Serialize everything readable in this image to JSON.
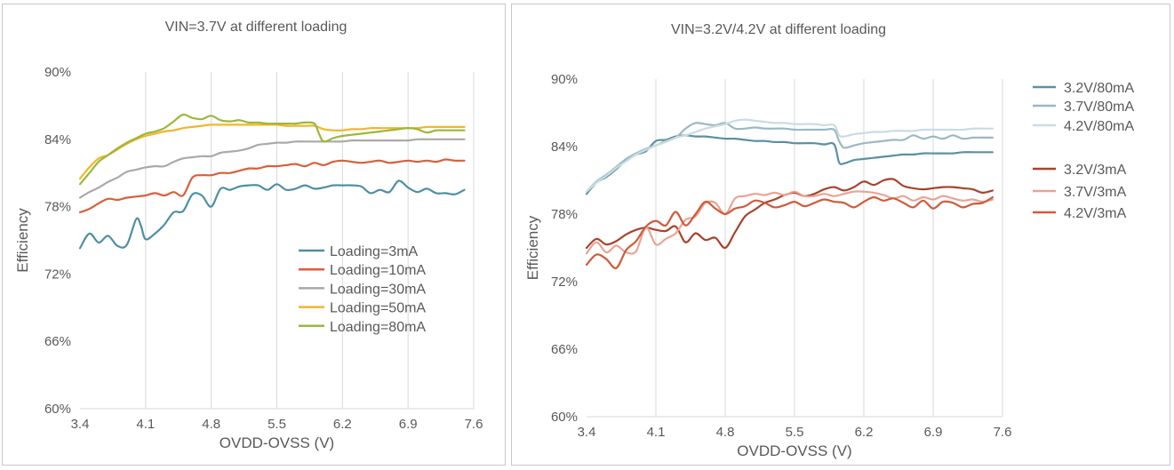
{
  "chart_data": [
    {
      "type": "line",
      "title": "VIN=3.7V  at different loading",
      "xlabel": "OVDD-OVSS (V)",
      "ylabel": "Efficiency",
      "xlim": [
        3.4,
        7.6
      ],
      "ylim": [
        60,
        90
      ],
      "x_ticks": [
        "3.4",
        "4.1",
        "4.8",
        "5.5",
        "6.2",
        "6.9",
        "7.6"
      ],
      "y_ticks": [
        "60%",
        "66%",
        "72%",
        "78%",
        "84%",
        "90%"
      ],
      "grid": "vertical",
      "legend_position": "lower-right inside",
      "series": [
        {
          "name": "Loading=3mA",
          "color": "#4e8fa3",
          "x": [
            3.4,
            3.5,
            3.6,
            3.7,
            3.8,
            3.9,
            4.0,
            4.05,
            4.1,
            4.2,
            4.3,
            4.4,
            4.5,
            4.6,
            4.7,
            4.8,
            4.9,
            5.0,
            5.1,
            5.2,
            5.3,
            5.4,
            5.5,
            5.6,
            5.7,
            5.8,
            5.9,
            6.0,
            6.1,
            6.2,
            6.3,
            6.4,
            6.5,
            6.6,
            6.7,
            6.8,
            6.9,
            7.0,
            7.1,
            7.2,
            7.3,
            7.4,
            7.5
          ],
          "y": [
            74.3,
            75.6,
            74.8,
            75.4,
            74.5,
            74.6,
            76.9,
            76.3,
            75.1,
            75.6,
            76.4,
            77.5,
            77.6,
            79.1,
            79.0,
            78.0,
            79.6,
            79.5,
            79.8,
            79.9,
            79.9,
            79.5,
            80.0,
            79.5,
            79.6,
            79.9,
            79.6,
            79.7,
            79.9,
            79.9,
            79.9,
            79.8,
            79.2,
            79.5,
            79.3,
            80.3,
            79.7,
            79.3,
            79.6,
            79.2,
            79.2,
            79.1,
            79.5
          ]
        },
        {
          "name": "Loading=10mA",
          "color": "#d95f3b",
          "x": [
            3.4,
            3.5,
            3.6,
            3.7,
            3.8,
            3.9,
            4.0,
            4.1,
            4.2,
            4.3,
            4.4,
            4.5,
            4.6,
            4.7,
            4.8,
            4.9,
            5.0,
            5.1,
            5.2,
            5.3,
            5.4,
            5.5,
            5.6,
            5.7,
            5.8,
            5.9,
            6.0,
            6.1,
            6.2,
            6.3,
            6.4,
            6.5,
            6.6,
            6.7,
            6.8,
            6.9,
            7.0,
            7.1,
            7.2,
            7.3,
            7.4,
            7.5
          ],
          "y": [
            77.5,
            77.8,
            78.3,
            78.7,
            78.6,
            78.8,
            78.9,
            79.0,
            79.2,
            79.0,
            79.3,
            79.0,
            80.6,
            80.8,
            80.8,
            81.0,
            81.0,
            81.2,
            81.4,
            81.4,
            81.6,
            81.6,
            81.7,
            81.8,
            81.6,
            81.9,
            81.7,
            82.0,
            82.1,
            82.0,
            81.9,
            82.0,
            82.1,
            81.9,
            82.0,
            82.1,
            82.0,
            82.1,
            82.0,
            82.2,
            82.1,
            82.1
          ]
        },
        {
          "name": "Loading=30mA",
          "color": "#a9a9a9",
          "x": [
            3.4,
            3.5,
            3.6,
            3.7,
            3.8,
            3.9,
            4.0,
            4.1,
            4.2,
            4.3,
            4.4,
            4.5,
            4.6,
            4.7,
            4.8,
            4.9,
            5.0,
            5.1,
            5.2,
            5.3,
            5.4,
            5.5,
            5.6,
            5.7,
            5.8,
            5.9,
            6.0,
            6.1,
            6.2,
            6.3,
            6.4,
            6.5,
            6.6,
            6.7,
            6.8,
            6.9,
            7.0,
            7.1,
            7.2,
            7.3,
            7.4,
            7.5
          ],
          "y": [
            78.8,
            79.3,
            79.7,
            80.2,
            80.6,
            81.1,
            81.3,
            81.5,
            81.6,
            81.6,
            82.0,
            82.3,
            82.4,
            82.5,
            82.5,
            82.8,
            82.9,
            83.0,
            83.2,
            83.5,
            83.6,
            83.7,
            83.7,
            83.8,
            83.8,
            83.8,
            83.8,
            83.8,
            83.8,
            83.9,
            83.9,
            83.9,
            83.9,
            83.9,
            83.9,
            83.9,
            84.0,
            84.0,
            84.0,
            84.0,
            84.0,
            84.0
          ]
        },
        {
          "name": "Loading=50mA",
          "color": "#f2b52c",
          "x": [
            3.4,
            3.5,
            3.6,
            3.7,
            3.8,
            3.9,
            4.0,
            4.1,
            4.2,
            4.3,
            4.4,
            4.5,
            4.6,
            4.7,
            4.8,
            4.9,
            5.0,
            5.1,
            5.2,
            5.3,
            5.4,
            5.5,
            5.6,
            5.7,
            5.8,
            5.9,
            6.0,
            6.1,
            6.2,
            6.3,
            6.4,
            6.5,
            6.6,
            6.7,
            6.8,
            6.9,
            7.0,
            7.1,
            7.2,
            7.3,
            7.4,
            7.5
          ],
          "y": [
            80.5,
            81.5,
            82.3,
            82.6,
            83.1,
            83.6,
            84.0,
            84.3,
            84.5,
            84.7,
            84.8,
            85.0,
            85.1,
            85.2,
            85.3,
            85.3,
            85.3,
            85.3,
            85.3,
            85.3,
            85.3,
            85.3,
            85.2,
            85.2,
            85.2,
            85.2,
            84.9,
            84.8,
            84.8,
            84.9,
            84.9,
            85.0,
            85.0,
            85.0,
            85.0,
            85.0,
            85.0,
            85.1,
            85.1,
            85.1,
            85.1,
            85.1
          ]
        },
        {
          "name": "Loading=80mA",
          "color": "#9cb73a",
          "x": [
            3.4,
            3.5,
            3.6,
            3.7,
            3.8,
            3.9,
            4.0,
            4.1,
            4.2,
            4.3,
            4.4,
            4.5,
            4.6,
            4.7,
            4.8,
            4.9,
            5.0,
            5.1,
            5.2,
            5.3,
            5.4,
            5.5,
            5.6,
            5.7,
            5.8,
            5.9,
            5.95,
            6.0,
            6.1,
            6.2,
            6.3,
            6.4,
            6.5,
            6.6,
            6.7,
            6.8,
            6.9,
            7.0,
            7.1,
            7.2,
            7.3,
            7.4,
            7.5
          ],
          "y": [
            80.0,
            81.0,
            82.0,
            82.6,
            83.2,
            83.7,
            84.1,
            84.5,
            84.7,
            85.0,
            85.6,
            86.2,
            85.9,
            85.8,
            86.1,
            85.7,
            85.6,
            85.7,
            85.5,
            85.5,
            85.4,
            85.4,
            85.4,
            85.4,
            85.5,
            85.4,
            84.5,
            83.8,
            84.1,
            84.3,
            84.4,
            84.5,
            84.6,
            84.7,
            84.8,
            84.9,
            85.0,
            84.9,
            84.6,
            84.8,
            84.8,
            84.8,
            84.8
          ]
        }
      ]
    },
    {
      "type": "line",
      "title": "VIN=3.2V/4.2V  at different loading",
      "xlabel": "OVDD-OVSS (V)",
      "ylabel": "Efficiency",
      "xlim": [
        3.4,
        7.6
      ],
      "ylim": [
        60,
        90
      ],
      "x_ticks": [
        "3.4",
        "4.1",
        "4.8",
        "5.5",
        "6.2",
        "6.9",
        "7.6"
      ],
      "y_ticks": [
        "60%",
        "66%",
        "72%",
        "78%",
        "84%",
        "90%"
      ],
      "grid": "vertical",
      "legend_position": "right outside",
      "series": [
        {
          "name": "3.2V/80mA",
          "color": "#5b8fa3",
          "x": [
            3.4,
            3.5,
            3.6,
            3.7,
            3.8,
            3.9,
            4.0,
            4.1,
            4.2,
            4.3,
            4.4,
            4.5,
            4.6,
            4.7,
            4.8,
            4.9,
            5.0,
            5.1,
            5.2,
            5.3,
            5.4,
            5.5,
            5.6,
            5.7,
            5.8,
            5.9,
            5.95,
            6.0,
            6.1,
            6.2,
            6.3,
            6.4,
            6.5,
            6.6,
            6.7,
            6.8,
            6.9,
            7.0,
            7.1,
            7.2,
            7.3,
            7.4,
            7.5
          ],
          "y": [
            79.8,
            80.8,
            81.3,
            82.0,
            82.8,
            83.3,
            83.6,
            84.5,
            84.6,
            84.9,
            85.0,
            84.9,
            84.9,
            84.8,
            84.7,
            84.7,
            84.6,
            84.5,
            84.5,
            84.4,
            84.4,
            84.3,
            84.3,
            84.3,
            84.2,
            84.2,
            82.6,
            82.5,
            82.8,
            82.9,
            83.0,
            83.1,
            83.2,
            83.3,
            83.3,
            83.4,
            83.4,
            83.4,
            83.4,
            83.5,
            83.5,
            83.5,
            83.5
          ]
        },
        {
          "name": "3.7V/80mA",
          "color": "#9ab8c4",
          "x": [
            3.4,
            3.5,
            3.6,
            3.7,
            3.8,
            3.9,
            4.0,
            4.1,
            4.2,
            4.3,
            4.4,
            4.5,
            4.6,
            4.7,
            4.8,
            4.9,
            5.0,
            5.1,
            5.2,
            5.3,
            5.4,
            5.5,
            5.6,
            5.7,
            5.8,
            5.9,
            5.95,
            6.0,
            6.1,
            6.2,
            6.3,
            6.4,
            6.5,
            6.6,
            6.7,
            6.8,
            6.9,
            7.0,
            7.1,
            7.2,
            7.3,
            7.4,
            7.5
          ],
          "y": [
            80.0,
            80.9,
            81.5,
            82.2,
            82.9,
            83.4,
            83.8,
            84.1,
            84.5,
            84.8,
            85.6,
            86.1,
            86.0,
            85.9,
            86.1,
            85.6,
            85.6,
            85.7,
            85.6,
            85.6,
            85.6,
            85.5,
            85.5,
            85.5,
            85.5,
            85.5,
            84.5,
            83.9,
            84.1,
            84.3,
            84.4,
            84.5,
            84.6,
            84.6,
            85.0,
            84.7,
            84.9,
            84.7,
            85.0,
            84.7,
            84.8,
            84.8,
            84.8
          ]
        },
        {
          "name": "4.2V/80mA",
          "color": "#c9dce3",
          "x": [
            3.4,
            3.5,
            3.6,
            3.7,
            3.8,
            3.9,
            4.0,
            4.1,
            4.2,
            4.3,
            4.4,
            4.5,
            4.6,
            4.7,
            4.8,
            4.9,
            5.0,
            5.1,
            5.2,
            5.3,
            5.4,
            5.5,
            5.6,
            5.7,
            5.8,
            5.9,
            5.95,
            6.0,
            6.1,
            6.2,
            6.3,
            6.4,
            6.5,
            6.6,
            6.7,
            6.8,
            6.9,
            7.0,
            7.1,
            7.2,
            7.3,
            7.4,
            7.5
          ],
          "y": [
            80.0,
            80.8,
            81.4,
            82.1,
            82.7,
            83.3,
            83.7,
            84.1,
            84.4,
            84.8,
            85.0,
            85.3,
            85.6,
            85.8,
            86.0,
            86.3,
            86.4,
            86.3,
            86.2,
            86.1,
            86.1,
            86.0,
            86.0,
            86.0,
            85.9,
            85.9,
            85.0,
            84.9,
            85.1,
            85.2,
            85.3,
            85.3,
            85.4,
            85.4,
            85.4,
            85.5,
            85.5,
            85.5,
            85.5,
            85.5,
            85.6,
            85.6,
            85.6
          ]
        },
        {
          "name": "3.2V/3mA",
          "color": "#a8432c",
          "x": [
            3.4,
            3.5,
            3.6,
            3.7,
            3.8,
            3.9,
            4.0,
            4.1,
            4.2,
            4.3,
            4.4,
            4.5,
            4.6,
            4.7,
            4.8,
            4.9,
            5.0,
            5.1,
            5.2,
            5.3,
            5.4,
            5.5,
            5.6,
            5.7,
            5.8,
            5.9,
            6.0,
            6.1,
            6.2,
            6.3,
            6.4,
            6.5,
            6.6,
            6.7,
            6.8,
            6.9,
            7.0,
            7.1,
            7.2,
            7.3,
            7.4,
            7.5
          ],
          "y": [
            75.0,
            75.8,
            75.3,
            75.6,
            76.2,
            76.6,
            76.8,
            76.6,
            76.5,
            76.9,
            75.5,
            76.3,
            75.7,
            75.9,
            75.0,
            76.4,
            77.8,
            78.4,
            79.0,
            79.3,
            79.7,
            79.9,
            79.6,
            79.8,
            80.2,
            80.4,
            80.1,
            80.4,
            80.9,
            80.6,
            81.0,
            81.1,
            80.5,
            80.3,
            80.2,
            80.3,
            80.4,
            80.4,
            80.3,
            80.2,
            79.9,
            80.1
          ]
        },
        {
          "name": "3.7V/3mA",
          "color": "#e8a494",
          "x": [
            3.4,
            3.5,
            3.6,
            3.7,
            3.8,
            3.9,
            4.0,
            4.1,
            4.2,
            4.3,
            4.4,
            4.5,
            4.6,
            4.7,
            4.8,
            4.9,
            5.0,
            5.1,
            5.2,
            5.3,
            5.4,
            5.5,
            5.6,
            5.7,
            5.8,
            5.9,
            6.0,
            6.1,
            6.2,
            6.3,
            6.4,
            6.5,
            6.6,
            6.7,
            6.8,
            6.9,
            7.0,
            7.1,
            7.2,
            7.3,
            7.4,
            7.5
          ],
          "y": [
            74.5,
            75.5,
            74.6,
            75.2,
            74.6,
            74.7,
            76.8,
            75.3,
            75.8,
            76.3,
            77.5,
            77.8,
            79.0,
            79.0,
            78.0,
            79.4,
            79.6,
            79.8,
            79.7,
            79.9,
            79.7,
            80.0,
            79.6,
            79.6,
            79.8,
            79.6,
            79.8,
            80.0,
            80.0,
            79.9,
            79.7,
            79.4,
            79.6,
            79.2,
            79.5,
            79.3,
            79.6,
            79.4,
            79.2,
            79.3,
            79.1,
            79.3
          ]
        },
        {
          "name": "4.2V/3mA",
          "color": "#d15a39",
          "x": [
            3.4,
            3.5,
            3.6,
            3.7,
            3.8,
            3.9,
            4.0,
            4.1,
            4.2,
            4.3,
            4.4,
            4.5,
            4.6,
            4.7,
            4.8,
            4.9,
            5.0,
            5.1,
            5.2,
            5.3,
            5.4,
            5.5,
            5.6,
            5.7,
            5.8,
            5.9,
            6.0,
            6.1,
            6.2,
            6.3,
            6.4,
            6.5,
            6.6,
            6.7,
            6.8,
            6.9,
            7.0,
            7.1,
            7.2,
            7.3,
            7.4,
            7.5
          ],
          "y": [
            73.5,
            74.4,
            74.0,
            73.2,
            74.8,
            75.6,
            76.9,
            77.4,
            77.0,
            78.2,
            77.0,
            78.0,
            79.1,
            78.5,
            78.0,
            78.5,
            78.7,
            79.2,
            79.0,
            78.6,
            78.8,
            79.1,
            78.7,
            79.0,
            79.3,
            79.1,
            79.0,
            78.6,
            79.1,
            79.5,
            79.2,
            79.4,
            79.0,
            78.6,
            79.2,
            78.5,
            79.1,
            79.0,
            78.6,
            78.9,
            79.0,
            79.5
          ]
        }
      ]
    }
  ]
}
